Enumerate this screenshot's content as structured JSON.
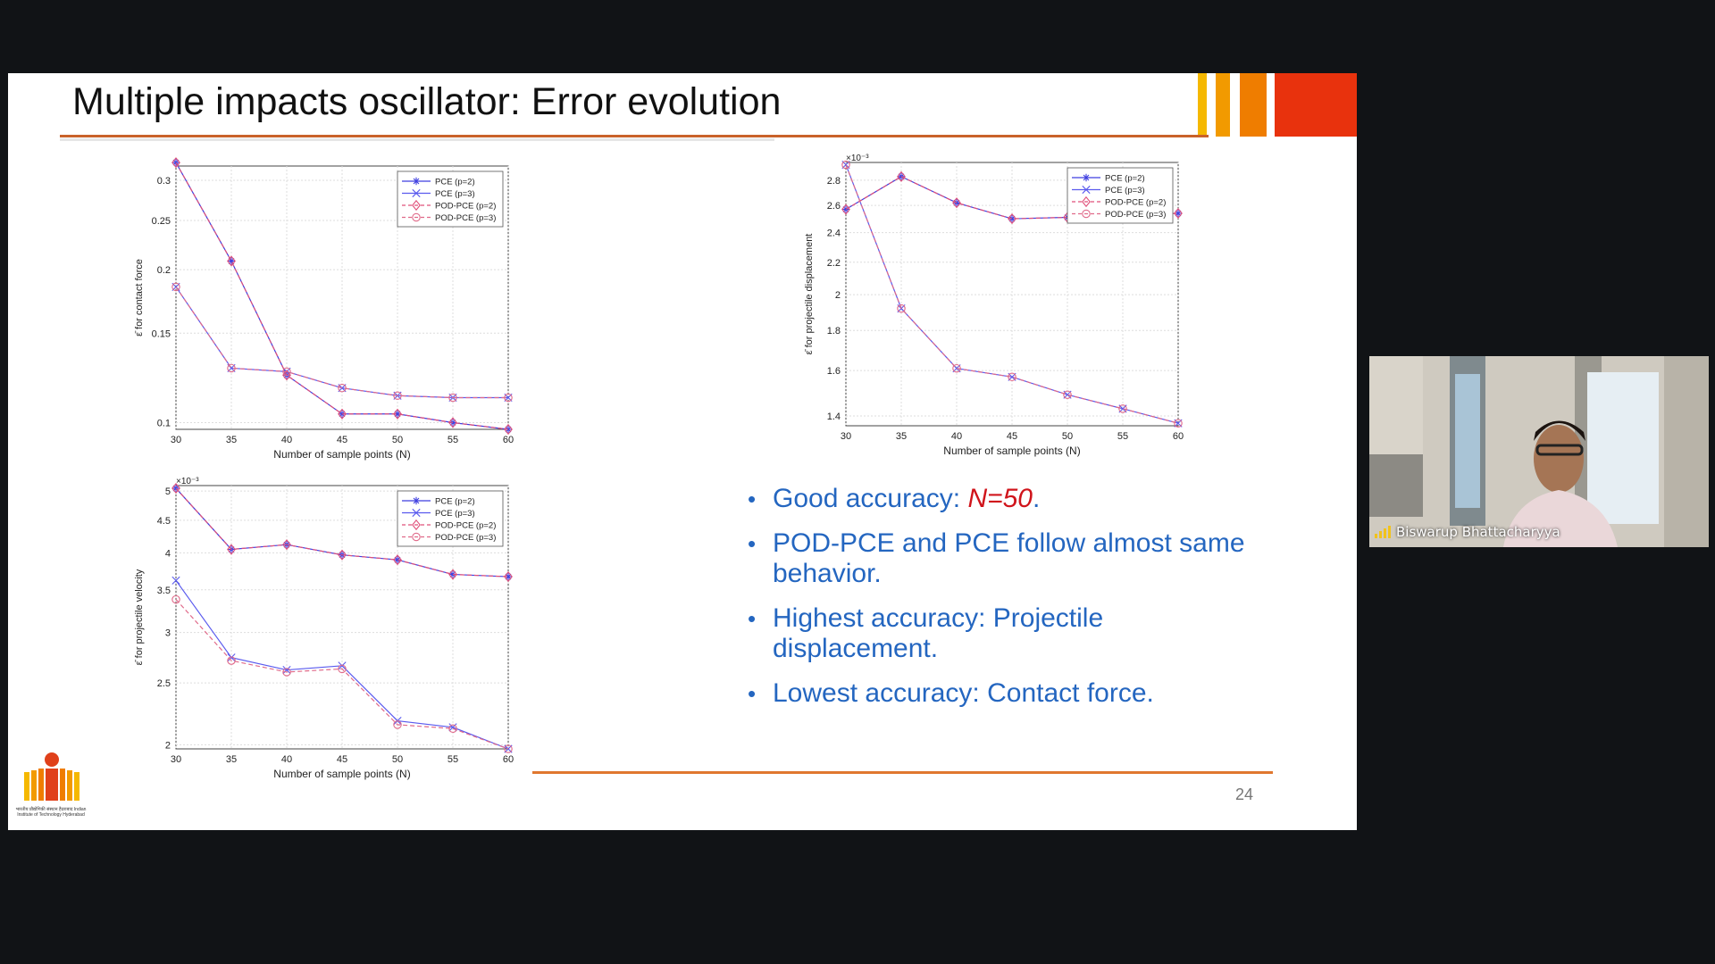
{
  "slide": {
    "title": "Multiple impacts oscillator: Error evolution",
    "page_number": "24",
    "accent_colors": [
      "#f5b800",
      "#f29a00",
      "#ef7d00",
      "#e8320d"
    ],
    "bullets": [
      {
        "text": "Good accuracy: ",
        "emphasis": "N=50",
        "suffix": "."
      },
      {
        "text": "POD-PCE and PCE follow almost same behavior."
      },
      {
        "text": "Highest accuracy: Projectile displacement."
      },
      {
        "text": "Lowest accuracy: Contact force."
      }
    ],
    "logo_caption": "भारतीय प्रौद्योगिकी संस्थान हैदराबाद Indian Institute of Technology Hyderabad"
  },
  "video": {
    "participant_name": "Biswarup Bhattacharyya",
    "signal_icon": "signal-bars-icon"
  },
  "chart_data": [
    {
      "id": "contact-force",
      "type": "line",
      "xlabel": "Number of sample points (N)",
      "ylabel": "ε̄ for contact force",
      "x": [
        30,
        35,
        40,
        45,
        50,
        55,
        60
      ],
      "xlim": [
        30,
        60
      ],
      "ylim": [
        0.097,
        0.32
      ],
      "y_scale": "log",
      "y_ticks": [
        0.1,
        0.15,
        0.2,
        0.25,
        0.3
      ],
      "y_tick_labels": [
        "0.1",
        "0.15",
        "0.2",
        "0.25",
        "0.3"
      ],
      "exponent_label": "",
      "grid": true,
      "legend_position": "top-right",
      "series": [
        {
          "name": "PCE (p=2)",
          "color": "#3f3fe0",
          "marker": "star",
          "dash": false,
          "values": [
            0.325,
            0.208,
            0.124,
            0.104,
            0.104,
            0.1,
            0.097
          ]
        },
        {
          "name": "PCE (p=3)",
          "color": "#5a5aee",
          "marker": "x",
          "dash": false,
          "values": [
            0.185,
            0.128,
            0.126,
            0.117,
            0.113,
            0.112,
            0.112
          ]
        },
        {
          "name": "POD-PCE (p=2)",
          "color": "#e0507a",
          "marker": "diamond",
          "dash": true,
          "values": [
            0.325,
            0.208,
            0.124,
            0.104,
            0.104,
            0.1,
            0.097
          ]
        },
        {
          "name": "POD-PCE (p=3)",
          "color": "#e06a8a",
          "marker": "circle",
          "dash": true,
          "values": [
            0.185,
            0.128,
            0.126,
            0.117,
            0.113,
            0.112,
            0.112
          ]
        }
      ]
    },
    {
      "id": "projectile-displacement",
      "type": "line",
      "xlabel": "Number of sample points (N)",
      "ylabel": "ε̄ for projectile displacement",
      "x": [
        30,
        35,
        40,
        45,
        50,
        55,
        60
      ],
      "xlim": [
        30,
        60
      ],
      "ylim": [
        1.36,
        2.95
      ],
      "y_scale": "log",
      "y_ticks": [
        1.4,
        1.6,
        1.8,
        2.0,
        2.2,
        2.4,
        2.6,
        2.8
      ],
      "y_tick_labels": [
        "1.4",
        "1.6",
        "1.8",
        "2",
        "2.2",
        "2.4",
        "2.6",
        "2.8"
      ],
      "exponent_label": "×10⁻³",
      "grid": true,
      "legend_position": "top-right",
      "series": [
        {
          "name": "PCE (p=2)",
          "color": "#3f3fe0",
          "marker": "star",
          "dash": false,
          "values": [
            2.57,
            2.83,
            2.62,
            2.5,
            2.51,
            2.53,
            2.54
          ]
        },
        {
          "name": "PCE (p=3)",
          "color": "#5a5aee",
          "marker": "x",
          "dash": false,
          "values": [
            2.93,
            1.92,
            1.61,
            1.57,
            1.49,
            1.43,
            1.37
          ]
        },
        {
          "name": "POD-PCE (p=2)",
          "color": "#e0507a",
          "marker": "diamond",
          "dash": true,
          "values": [
            2.57,
            2.83,
            2.62,
            2.5,
            2.51,
            2.53,
            2.54
          ]
        },
        {
          "name": "POD-PCE (p=3)",
          "color": "#e06a8a",
          "marker": "circle",
          "dash": true,
          "values": [
            2.93,
            1.92,
            1.61,
            1.57,
            1.49,
            1.43,
            1.37
          ]
        }
      ]
    },
    {
      "id": "projectile-velocity",
      "type": "line",
      "xlabel": "Number of sample points (N)",
      "ylabel": "ε̄ for projectile velocity",
      "x": [
        30,
        35,
        40,
        45,
        50,
        55,
        60
      ],
      "xlim": [
        30,
        60
      ],
      "ylim": [
        1.97,
        5.1
      ],
      "y_scale": "log",
      "y_ticks": [
        2,
        2.5,
        3,
        3.5,
        4,
        4.5,
        5
      ],
      "y_tick_labels": [
        "2",
        "2.5",
        "3",
        "3.5",
        "4",
        "4.5",
        "5"
      ],
      "exponent_label": "×10⁻³",
      "grid": true,
      "legend_position": "top-right",
      "series": [
        {
          "name": "PCE (p=2)",
          "color": "#3f3fe0",
          "marker": "star",
          "dash": false,
          "values": [
            5.05,
            4.05,
            4.12,
            3.97,
            3.9,
            3.7,
            3.67
          ]
        },
        {
          "name": "PCE (p=3)",
          "color": "#5a5aee",
          "marker": "x",
          "dash": false,
          "values": [
            3.62,
            2.74,
            2.62,
            2.66,
            2.18,
            2.13,
            1.97
          ]
        },
        {
          "name": "POD-PCE (p=2)",
          "color": "#e0507a",
          "marker": "diamond",
          "dash": true,
          "values": [
            5.05,
            4.05,
            4.12,
            3.97,
            3.9,
            3.7,
            3.67
          ]
        },
        {
          "name": "POD-PCE (p=3)",
          "color": "#e06a8a",
          "marker": "circle",
          "dash": true,
          "values": [
            3.38,
            2.71,
            2.6,
            2.63,
            2.15,
            2.12,
            1.97
          ]
        }
      ]
    }
  ]
}
